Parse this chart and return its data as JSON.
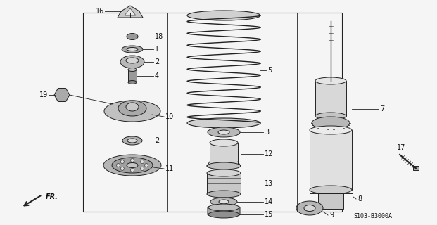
{
  "part_number": "S103-B3000A",
  "bg_color": "#f5f5f5",
  "line_color": "#222222",
  "text_color": "#111111",
  "fig_w": 6.21,
  "fig_h": 3.2,
  "dpi": 100
}
